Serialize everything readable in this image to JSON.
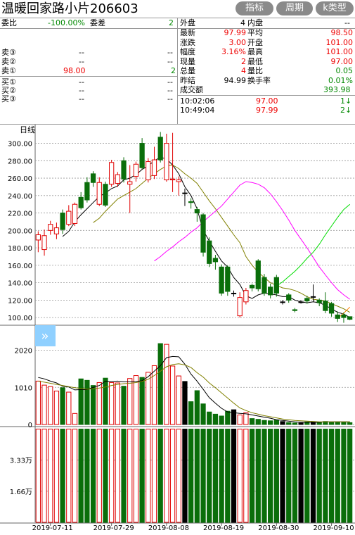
{
  "header": {
    "title": "温暖回家路小片206603",
    "buttons": [
      "指标",
      "周期",
      "k类型"
    ]
  },
  "order_book": {
    "weibi_label": "委比",
    "weibi_value": "-100.00%",
    "weicha_label": "委差",
    "weicha_value": "2",
    "sell": [
      {
        "label": "卖③",
        "price": "--",
        "vol": "--"
      },
      {
        "label": "卖②",
        "price": "--",
        "vol": "--"
      },
      {
        "label": "卖①",
        "price": "98.00",
        "vol": "2"
      }
    ],
    "buy": [
      {
        "label": "买①",
        "price": "--",
        "vol": "--"
      },
      {
        "label": "买②",
        "price": "--",
        "vol": "--"
      },
      {
        "label": "买③",
        "price": "--",
        "vol": "--"
      }
    ]
  },
  "stats": {
    "waipan_label": "外盘",
    "waipan_value": "4",
    "neipan_label": "内盘",
    "neipan_value": "--",
    "rows": [
      {
        "l1": "最新",
        "v1": "97.99",
        "c1": "r",
        "l2": "平均",
        "v2": "98.50",
        "c2": "r"
      },
      {
        "l1": "涨跌",
        "v1": "3.00",
        "c1": "r",
        "l2": "开盘",
        "v2": "101.00",
        "c2": "r"
      },
      {
        "l1": "幅度",
        "v1": "3.16%",
        "c1": "r",
        "l2": "最高",
        "v2": "101.00",
        "c2": "r"
      },
      {
        "l1": "现量",
        "v1": "2",
        "c1": "r",
        "l2": "最低",
        "v2": "97.00",
        "c2": "r"
      },
      {
        "l1": "总量",
        "v1": "4",
        "c1": "r",
        "l2": "量比",
        "v2": "0.05",
        "c2": "g"
      },
      {
        "l1": "昨结",
        "v1": "94.99",
        "c1": "k",
        "l2": "换手率",
        "v2": "0.01%",
        "c2": "g"
      }
    ],
    "chengjiao_label": "成交额",
    "chengjiao_value": "393.98"
  },
  "ticks": [
    {
      "time": "10:02:06",
      "price": "97.00",
      "vol": "1↓"
    },
    {
      "time": "10:49:04",
      "price": "97.99",
      "vol": "2↓"
    }
  ],
  "colors": {
    "up": "#e00000",
    "down": "#0a6e0a",
    "flat": "#000000",
    "ma5": "#000000",
    "ma10": "#808000",
    "ma20": "#ff00ff",
    "ma40": "#00dd00",
    "ma60": "#ff7f00",
    "grid": "#999999"
  },
  "chart_data": [
    {
      "type": "candlestick",
      "label": "日线",
      "ylim": [
        92,
        315
      ],
      "yticks": [
        "300.00",
        "280.00",
        "260.00",
        "240.00",
        "220.00",
        "200.00",
        "180.00",
        "160.00",
        "140.00",
        "120.00",
        "100.00"
      ],
      "ytick_values": [
        300,
        280,
        260,
        240,
        220,
        200,
        180,
        160,
        140,
        120,
        100
      ],
      "candles": [
        {
          "o": 189,
          "c": 195,
          "h": 199,
          "l": 175
        },
        {
          "o": 178,
          "c": 194,
          "h": 201,
          "l": 171
        },
        {
          "o": 200,
          "c": 207,
          "h": 211,
          "l": 195
        },
        {
          "o": 196,
          "c": 203,
          "h": 209,
          "l": 190
        },
        {
          "o": 220,
          "c": 201,
          "h": 224,
          "l": 196
        },
        {
          "o": 207,
          "c": 222,
          "h": 229,
          "l": 205
        },
        {
          "o": 208,
          "c": 230,
          "h": 232,
          "l": 205
        },
        {
          "o": 238,
          "c": 226,
          "h": 244,
          "l": 224
        },
        {
          "o": 255,
          "c": 235,
          "h": 261,
          "l": 232
        },
        {
          "o": 265,
          "c": 255,
          "h": 268,
          "l": 250
        },
        {
          "o": 230,
          "c": 255,
          "h": 261,
          "l": 228
        },
        {
          "o": 253,
          "c": 229,
          "h": 256,
          "l": 227
        },
        {
          "o": 253,
          "c": 278,
          "h": 281,
          "l": 250
        },
        {
          "o": 254,
          "c": 264,
          "h": 267,
          "l": 250
        },
        {
          "o": 280,
          "c": 259,
          "h": 284,
          "l": 255
        },
        {
          "o": 253,
          "c": 256,
          "h": 275,
          "l": 220
        },
        {
          "o": 262,
          "c": 276,
          "h": 279,
          "l": 256
        },
        {
          "o": 300,
          "c": 272,
          "h": 306,
          "l": 270
        },
        {
          "o": 258,
          "c": 279,
          "h": 283,
          "l": 255
        },
        {
          "o": 263,
          "c": 281,
          "h": 296,
          "l": 259
        },
        {
          "o": 307,
          "c": 281,
          "h": 313,
          "l": 278
        },
        {
          "o": 258,
          "c": 300,
          "h": 311,
          "l": 256
        },
        {
          "o": 258,
          "c": 259,
          "h": 312,
          "l": 244
        },
        {
          "o": 256,
          "c": 258,
          "h": 262,
          "l": 240
        },
        {
          "o": 243,
          "c": 243,
          "h": 248,
          "l": 228
        },
        {
          "o": 233,
          "c": 232,
          "h": 237,
          "l": 225
        },
        {
          "o": 224,
          "c": 220,
          "h": 227,
          "l": 210
        },
        {
          "o": 218,
          "c": 175,
          "h": 220,
          "l": 170
        },
        {
          "o": 188,
          "c": 162,
          "h": 192,
          "l": 158
        },
        {
          "o": 168,
          "c": 164,
          "h": 172,
          "l": 155
        },
        {
          "o": 158,
          "c": 128,
          "h": 161,
          "l": 125
        },
        {
          "o": 158,
          "c": 130,
          "h": 160,
          "l": 125
        },
        {
          "o": 128,
          "c": 128,
          "h": 131,
          "l": 124
        },
        {
          "o": 102,
          "c": 123,
          "h": 129,
          "l": 100
        },
        {
          "o": 118,
          "c": 131,
          "h": 134,
          "l": 115
        },
        {
          "o": 137,
          "c": 134,
          "h": 139,
          "l": 130
        },
        {
          "o": 165,
          "c": 133,
          "h": 167,
          "l": 130
        },
        {
          "o": 146,
          "c": 128,
          "h": 150,
          "l": 125
        },
        {
          "o": 135,
          "c": 126,
          "h": 139,
          "l": 122
        },
        {
          "o": 146,
          "c": 128,
          "h": 149,
          "l": 124
        },
        {
          "o": 118,
          "c": 118,
          "h": 120,
          "l": 115
        },
        {
          "o": 126,
          "c": 120,
          "h": 128,
          "l": 117
        },
        {
          "o": 109,
          "c": 108,
          "h": 111,
          "l": 106
        },
        {
          "o": 118,
          "c": 118,
          "h": 120,
          "l": 116
        },
        {
          "o": 122,
          "c": 119,
          "h": 125,
          "l": 116
        },
        {
          "o": 124,
          "c": 124,
          "h": 138,
          "l": 118
        },
        {
          "o": 120,
          "c": 117,
          "h": 122,
          "l": 113
        },
        {
          "o": 119,
          "c": 108,
          "h": 129,
          "l": 105
        },
        {
          "o": 116,
          "c": 105,
          "h": 118,
          "l": 101
        },
        {
          "o": 103,
          "c": 99,
          "h": 107,
          "l": 95
        },
        {
          "o": 103,
          "c": 100,
          "h": 106,
          "l": 94
        },
        {
          "o": 101,
          "c": 98,
          "h": 101,
          "l": 97
        }
      ],
      "ma": [
        {
          "name": "MA5",
          "values": [
            null,
            null,
            null,
            null,
            193,
            199,
            210,
            218,
            225,
            232,
            239,
            243,
            248,
            251,
            258,
            260,
            264,
            270,
            274,
            280,
            284,
            282,
            275,
            265,
            250,
            240,
            225,
            200,
            188,
            176,
            165,
            158,
            146,
            138,
            125,
            122,
            126,
            128,
            127,
            126,
            124,
            124,
            120,
            118,
            117,
            118,
            117,
            114,
            110,
            106,
            104,
            100
          ]
        },
        {
          "name": "MA10",
          "values": [
            null,
            null,
            null,
            null,
            null,
            null,
            null,
            null,
            null,
            209,
            214,
            222,
            229,
            236,
            240,
            244,
            248,
            254,
            260,
            265,
            270,
            274,
            275,
            271,
            265,
            260,
            254,
            244,
            234,
            225,
            215,
            205,
            195,
            186,
            170,
            160,
            152,
            146,
            140,
            137,
            134,
            133,
            131,
            128,
            124,
            121,
            120,
            119,
            116,
            113,
            110,
            106
          ]
        },
        {
          "name": "MA20",
          "values": [
            null,
            null,
            null,
            null,
            null,
            null,
            null,
            null,
            null,
            null,
            null,
            null,
            null,
            null,
            null,
            null,
            null,
            null,
            null,
            165,
            170,
            176,
            181,
            187,
            192,
            198,
            203,
            210,
            216,
            222,
            228,
            236,
            244,
            252,
            256,
            255,
            253,
            249,
            242,
            233,
            223,
            212,
            200,
            190,
            180,
            169,
            158,
            149,
            140,
            132,
            126,
            121
          ]
        },
        {
          "name": "MA40",
          "values": [
            null,
            null,
            null,
            null,
            null,
            null,
            null,
            null,
            null,
            null,
            null,
            null,
            null,
            null,
            null,
            null,
            null,
            null,
            null,
            null,
            null,
            null,
            null,
            null,
            null,
            null,
            null,
            null,
            null,
            null,
            null,
            null,
            null,
            null,
            null,
            null,
            null,
            null,
            null,
            136,
            141,
            147,
            153,
            160,
            168,
            175,
            184,
            195,
            205,
            215,
            224,
            230
          ]
        },
        {
          "name": "MA60",
          "values": [
            null,
            null,
            null,
            null,
            null,
            null,
            null,
            null,
            null,
            null,
            null,
            null,
            null,
            null,
            null,
            null,
            null,
            null,
            null,
            null,
            null,
            null,
            null,
            null,
            null,
            null,
            null,
            null,
            null,
            null,
            null,
            null,
            null,
            null,
            null,
            null,
            null,
            null,
            null,
            null,
            null,
            null,
            null,
            null,
            null,
            null,
            null,
            null,
            null,
            99,
            105,
            112
          ]
        }
      ]
    },
    {
      "type": "bar",
      "label": "volume",
      "ylim": [
        0,
        2700
      ],
      "yticks": [
        "2020",
        "1010",
        "0"
      ],
      "ytick_values": [
        2020,
        1010,
        0
      ],
      "values": [
        1180,
        1070,
        1030,
        910,
        1000,
        880,
        300,
        1240,
        1200,
        1060,
        1140,
        1260,
        1140,
        1130,
        1040,
        1250,
        1330,
        1280,
        1420,
        1600,
        2200,
        2180,
        1590,
        1320,
        1170,
        620,
        920,
        560,
        340,
        280,
        230,
        360,
        400,
        260,
        320,
        160,
        140,
        110,
        100,
        120,
        80,
        50,
        40,
        40,
        70,
        70,
        60,
        80,
        60,
        70,
        60,
        50
      ],
      "ma": [
        {
          "name": "VMA5",
          "values": [
            1280,
            1240,
            1180,
            1130,
            1040,
            1020,
            940,
            950,
            950,
            1010,
            1060,
            1180,
            1170,
            1180,
            1160,
            1160,
            1170,
            1190,
            1300,
            1450,
            1600,
            1820,
            1850,
            1840,
            1640,
            1370,
            1180,
            960,
            730,
            580,
            440,
            340,
            320,
            300,
            290,
            260,
            230,
            200,
            170,
            130,
            110,
            90,
            70,
            60,
            60,
            60,
            60,
            70,
            70,
            70,
            70,
            70
          ]
        },
        {
          "name": "VMA10",
          "values": [
            1180,
            1150,
            1120,
            1090,
            1060,
            1030,
            1000,
            980,
            960,
            970,
            990,
            1020,
            1060,
            1090,
            1110,
            1120,
            1140,
            1170,
            1230,
            1330,
            1450,
            1570,
            1630,
            1650,
            1620,
            1550,
            1410,
            1290,
            1130,
            1000,
            860,
            720,
            580,
            450,
            380,
            320,
            280,
            240,
            210,
            180,
            150,
            130,
            110,
            100,
            90,
            80,
            70,
            70,
            70,
            70,
            70,
            70
          ]
        }
      ]
    },
    {
      "type": "bar",
      "label": "holdings",
      "ylim": [
        0,
        50000
      ],
      "yticks": [
        "3.33万",
        "1.66万"
      ],
      "ytick_values": [
        33300,
        16600
      ],
      "values": [
        49800,
        49800,
        49800,
        49800,
        49800,
        49800,
        49800,
        49800,
        49800,
        49800,
        49800,
        49800,
        49800,
        49800,
        49800,
        49800,
        49800,
        49800,
        49800,
        49800,
        49800,
        49800,
        49800,
        49800,
        49800,
        49800,
        49800,
        49800,
        49800,
        49800,
        49800,
        49800,
        49800,
        49800,
        49800,
        49800,
        49800,
        49800,
        49800,
        49800,
        49800,
        49800,
        49800,
        49800,
        49800,
        49800,
        49800,
        49800,
        49800,
        49800,
        49800,
        49800
      ]
    }
  ],
  "xaxis_labels": [
    {
      "text": "2019-07-11",
      "index": 2
    },
    {
      "text": "2019-07-29",
      "index": 12
    },
    {
      "text": "2019-08-08",
      "index": 21
    },
    {
      "text": "2019-08-19",
      "index": 30
    },
    {
      "text": "2019-08-30",
      "index": 39
    },
    {
      "text": "2019-09-10",
      "index": 48
    }
  ]
}
